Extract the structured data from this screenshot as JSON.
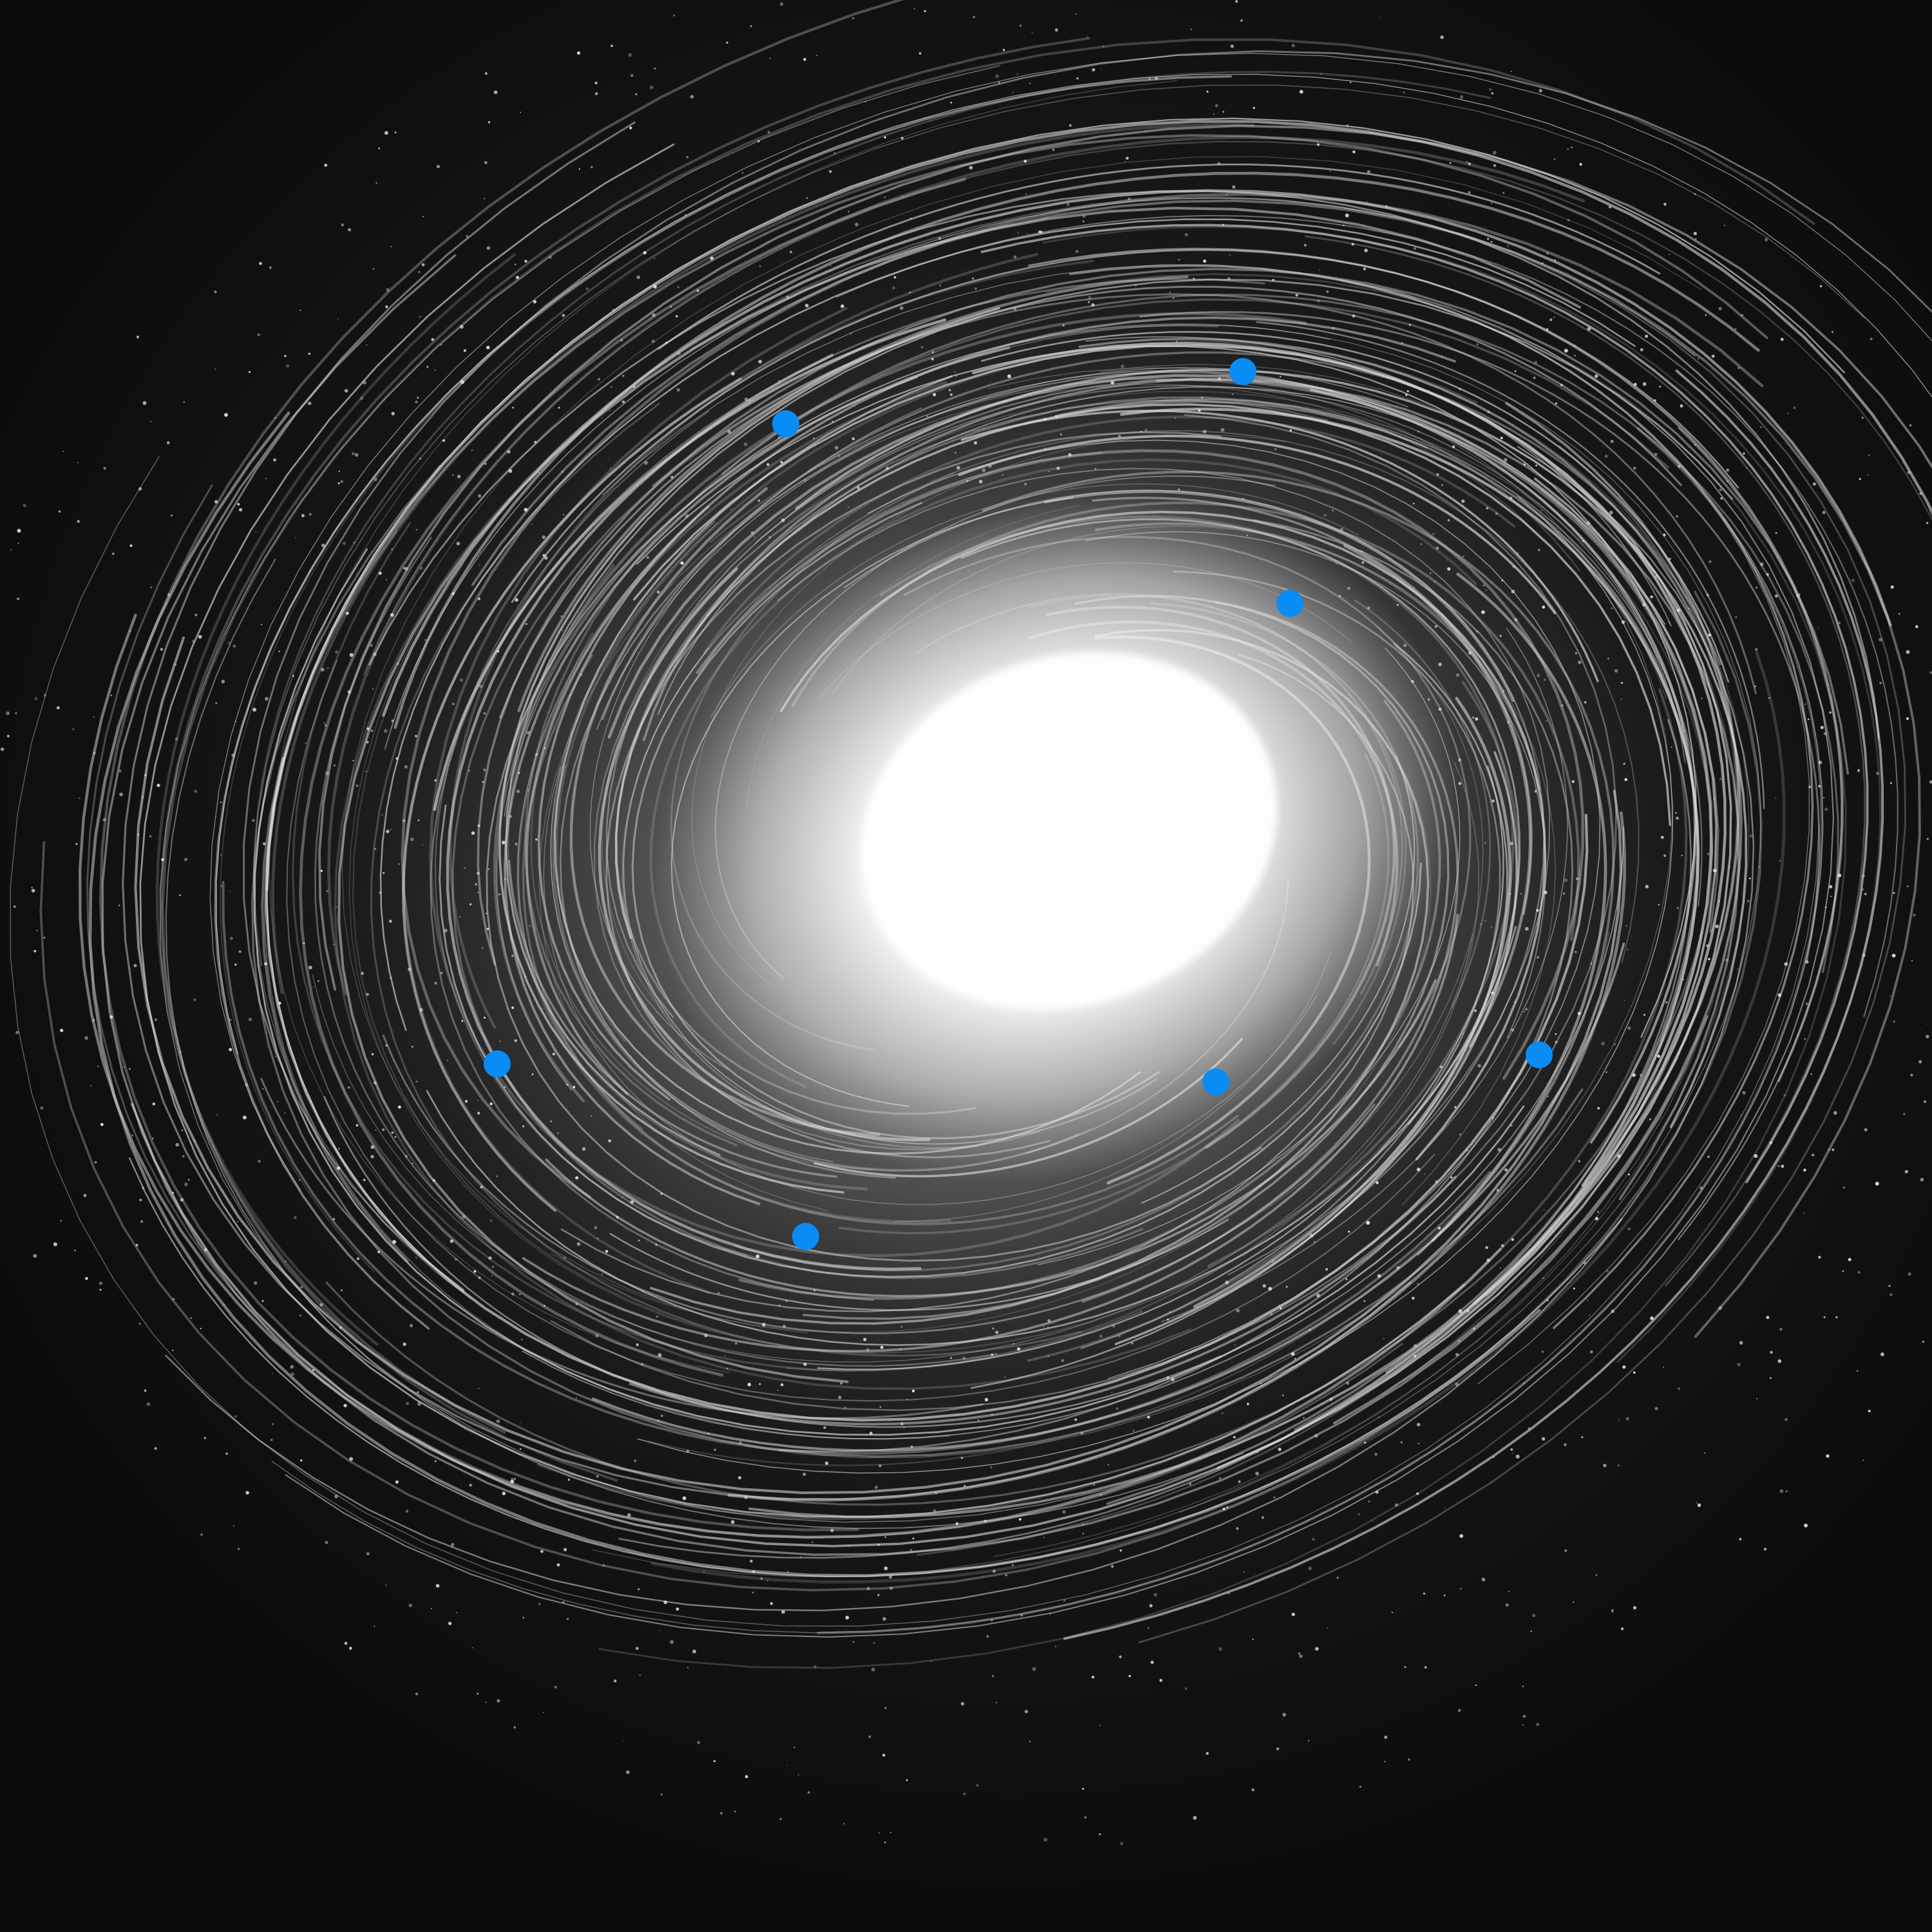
{
  "scene": {
    "background_color": "#121212",
    "galaxy_core_color": "#ffffff",
    "arm_color": "#d9d9d9",
    "marker_color": "#0a8cf5",
    "marker_count": 7,
    "markers": [
      {
        "name": "marker-upper-left"
      },
      {
        "name": "marker-top-right"
      },
      {
        "name": "marker-right-inner"
      },
      {
        "name": "marker-left"
      },
      {
        "name": "marker-lower-center"
      },
      {
        "name": "marker-lower-left"
      },
      {
        "name": "marker-far-right"
      }
    ]
  }
}
